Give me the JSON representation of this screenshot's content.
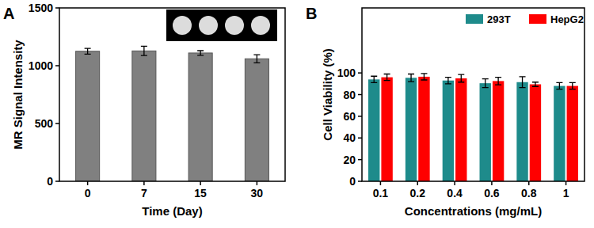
{
  "chart_data": [
    {
      "type": "bar",
      "title": "A",
      "x_label": "Time (Day)",
      "y_label": "MR Signal Intensity",
      "categories": [
        "0",
        "7",
        "15",
        "30"
      ],
      "values": [
        1125,
        1128,
        1110,
        1060
      ],
      "errors": [
        25,
        40,
        20,
        35
      ],
      "color": "#808080",
      "ylim": [
        0,
        1500
      ],
      "yticks": [
        0,
        500,
        1000,
        1500
      ],
      "grid": false
    },
    {
      "type": "bar",
      "title": "B",
      "x_label": "Concentrations (mg/mL)",
      "y_label": "Cell Viability (%)",
      "categories": [
        "0.1",
        "0.2",
        "0.4",
        "0.6",
        "0.8",
        "1"
      ],
      "series": [
        {
          "name": "293T",
          "color": "#1e8b8b",
          "values": [
            94,
            95.5,
            93,
            90.5,
            91.5,
            88
          ],
          "errors": [
            3,
            3.5,
            3,
            4,
            5,
            3
          ]
        },
        {
          "name": "HepG2",
          "color": "#ff0000",
          "values": [
            96,
            96.5,
            95,
            92.5,
            89.5,
            88
          ],
          "errors": [
            3,
            3,
            3.5,
            3.5,
            2,
            3
          ]
        }
      ],
      "ylim": [
        0,
        160
      ],
      "yticks": [
        0,
        20,
        40,
        60,
        80,
        100
      ],
      "grid": false,
      "legend": "upper right"
    }
  ]
}
